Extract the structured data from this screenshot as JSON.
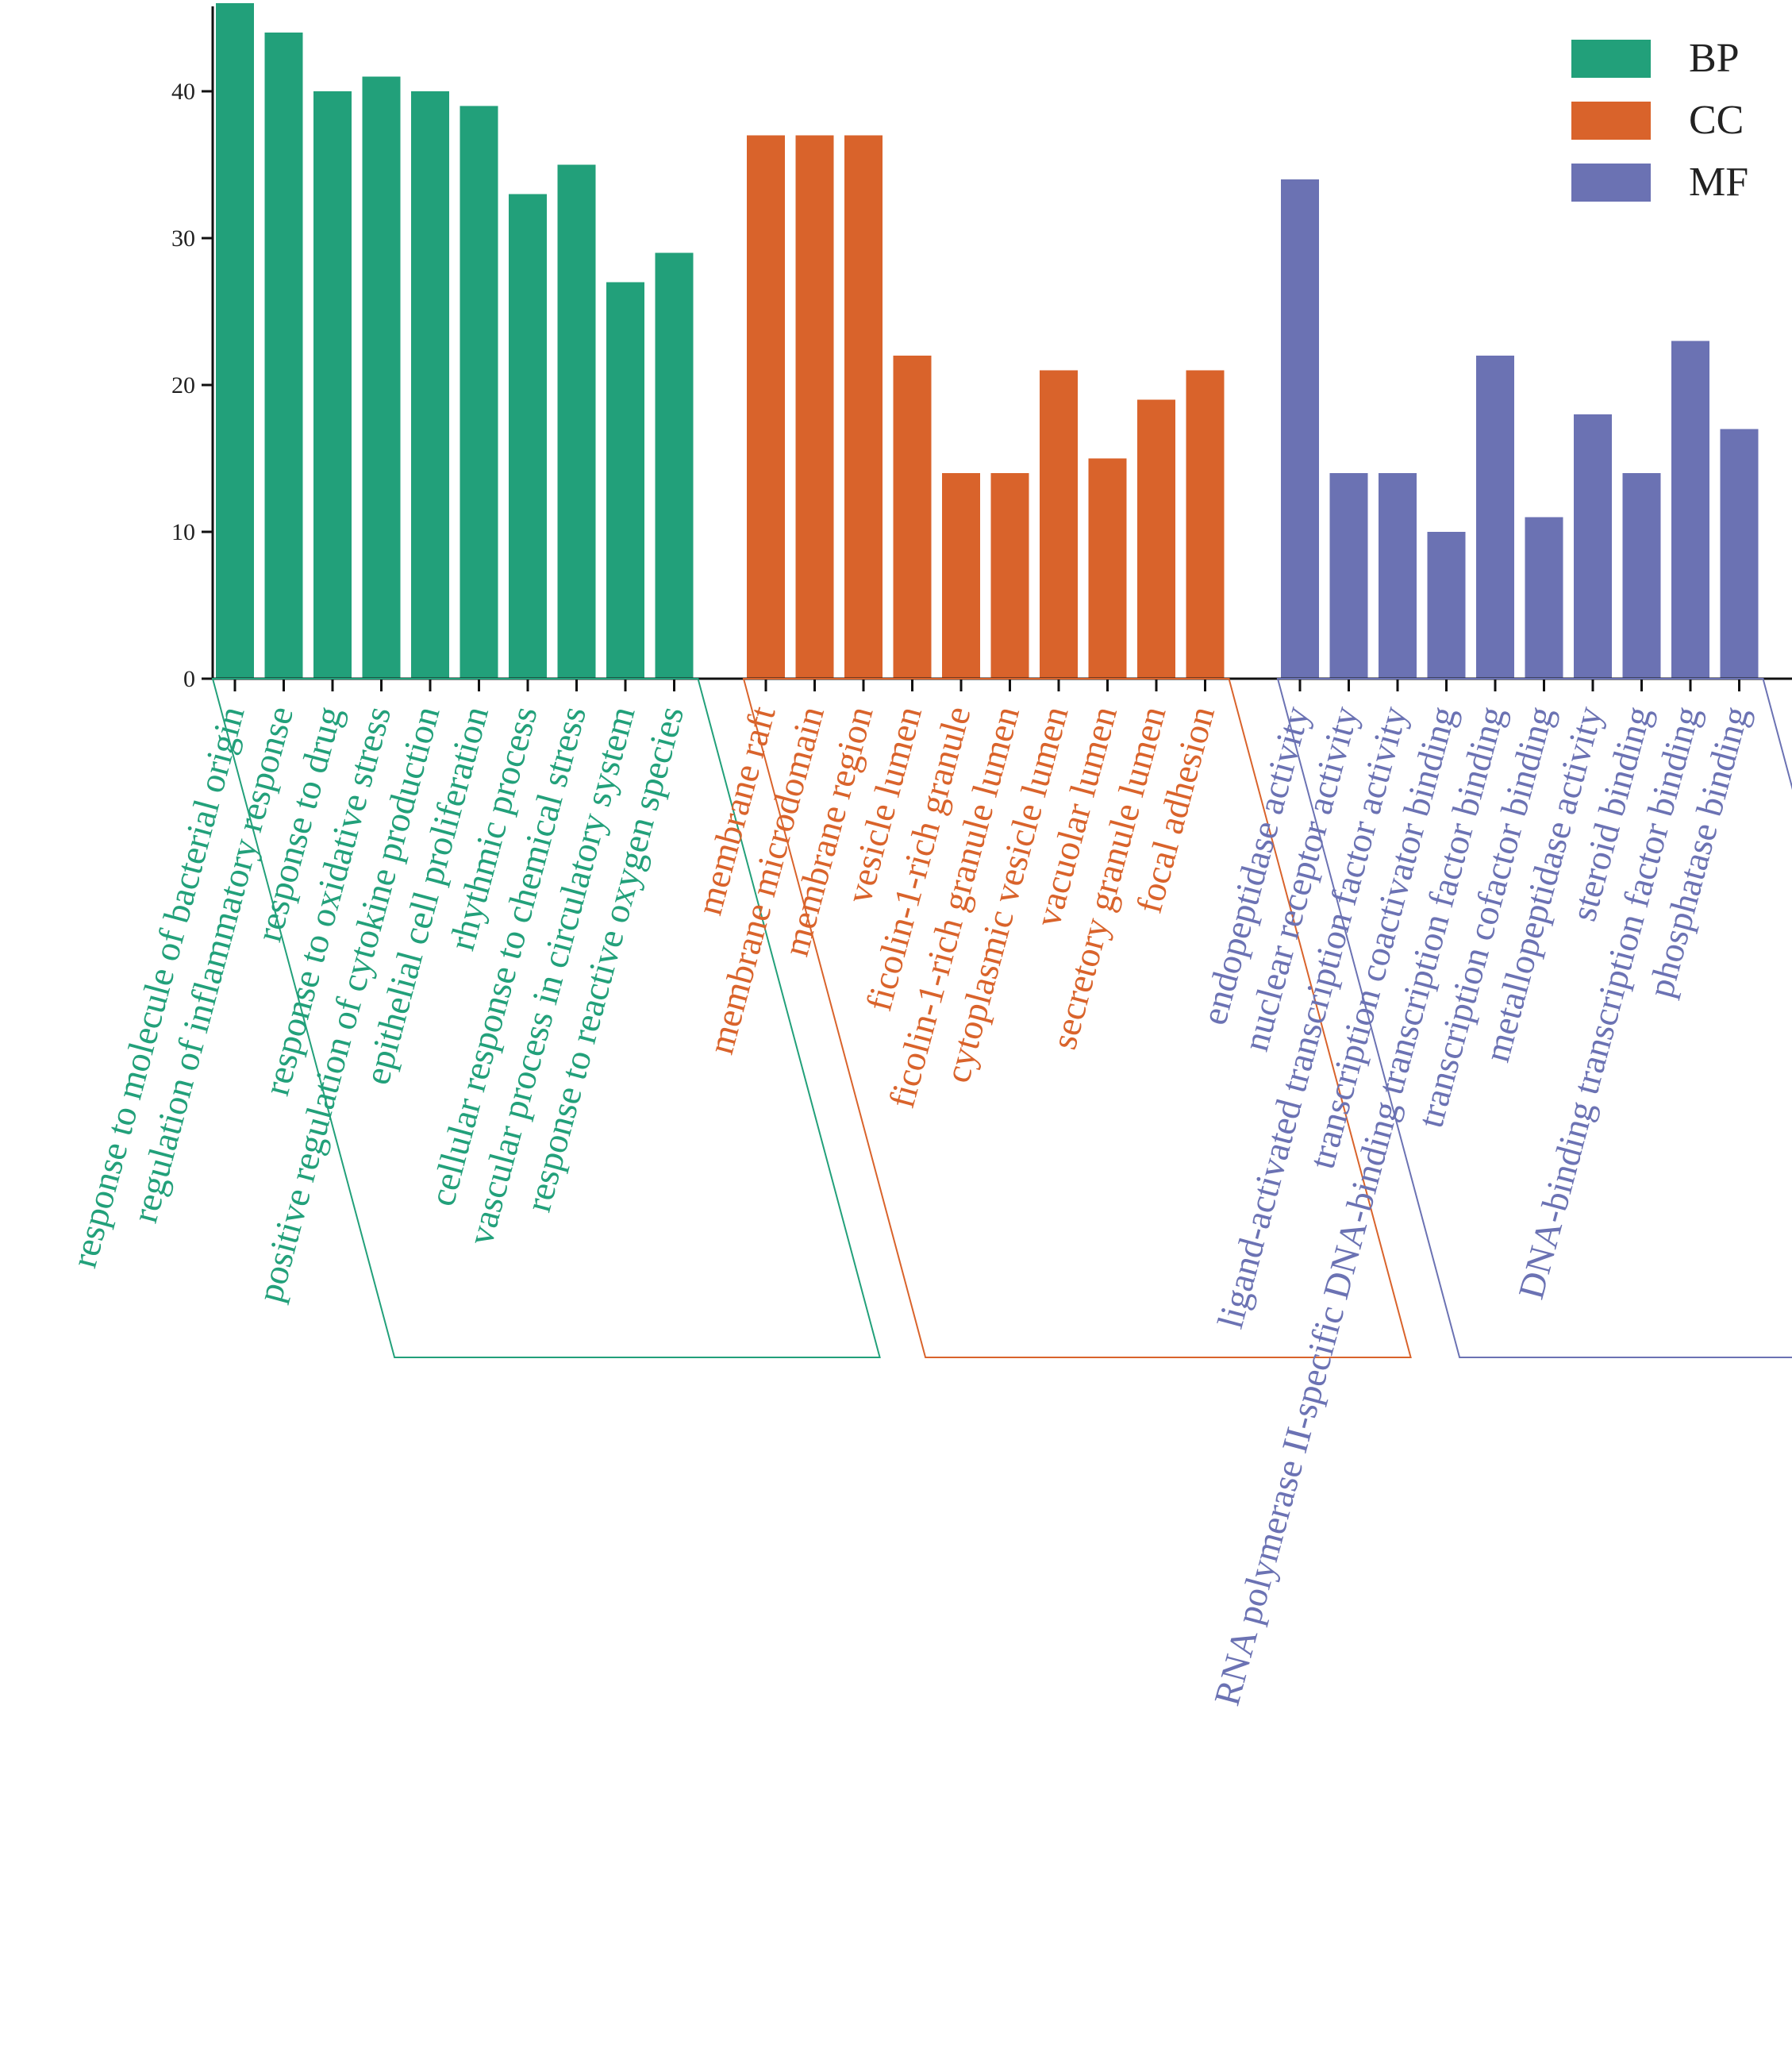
{
  "chart_data": {
    "type": "bar",
    "title": "",
    "xlabel": "",
    "ylabel": "",
    "ylim": [
      0,
      46
    ],
    "yticks": [
      "0",
      "10",
      "20",
      "30",
      "40"
    ],
    "grid": false,
    "legend_position": "top-right",
    "series": [
      {
        "name": "BP",
        "color": "#22a07a",
        "categories": [
          "response to molecule of bacterial origin",
          "regulation of inflammatory response",
          "response to drug",
          "response to oxidative stress",
          "positive regulation of cytokine production",
          "epithelial cell proliferation",
          "rhythmic process",
          "cellular response to chemical stress",
          "vascular process in circulatory system",
          "response to reactive oxygen species"
        ],
        "values": [
          46,
          44,
          40,
          41,
          40,
          39,
          33,
          35,
          27,
          29
        ]
      },
      {
        "name": "CC",
        "color": "#d9632b",
        "categories": [
          "membrane raft",
          "membrane microdomain",
          "membrane region",
          "vesicle lumen",
          "ficolin-1-rich granule",
          "ficolin-1-rich granule lumen",
          "cytoplasmic vesicle lumen",
          "vacuolar lumen",
          "secretory granule lumen",
          "focal adhesion"
        ],
        "values": [
          37,
          37,
          37,
          22,
          14,
          14,
          21,
          15,
          19,
          21
        ]
      },
      {
        "name": "MF",
        "color": "#6b72b3",
        "categories": [
          "endopeptidase activity",
          "nuclear receptor activity",
          "ligand-activated transcription factor activity",
          "transcription coactivator binding",
          "RNA polymerase II-specific DNA-binding transcription factor binding",
          "transcription cofactor binding",
          "metallopeptidase activity",
          "steroid binding",
          "DNA-binding transcription factor binding",
          "phosphatase binding"
        ],
        "values": [
          34,
          14,
          14,
          10,
          22,
          11,
          18,
          14,
          23,
          17
        ]
      }
    ]
  }
}
